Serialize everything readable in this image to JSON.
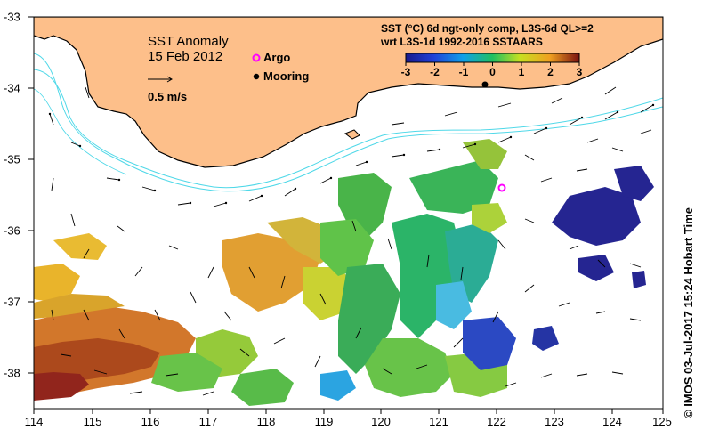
{
  "map": {
    "title": "SST Anomaly",
    "date": "15 Feb 2012",
    "legend": {
      "argo_label": "Argo",
      "mooring_label": "Mooring",
      "argo_color": "#ff00ff",
      "mooring_color": "#000000"
    },
    "vector_scale_label": "0.5 m/s",
    "colorbar": {
      "title_line1": "SST (°C) 6d ngt-only comp, L3S-6d QL>=2",
      "title_line2": "wrt L3S-1d 1992-2016 SSTAARS",
      "ticks": [
        "-3",
        "-2",
        "-1",
        "0",
        "1",
        "2",
        "3"
      ],
      "colors": [
        "#1a1a8c",
        "#2040d8",
        "#10a0e8",
        "#20c060",
        "#c8e020",
        "#f0a020",
        "#b04010",
        "#7a1010"
      ]
    },
    "x_ticks": [
      "114",
      "115",
      "116",
      "117",
      "118",
      "119",
      "120",
      "121",
      "122",
      "123",
      "124",
      "125"
    ],
    "y_ticks": [
      "-33",
      "-34",
      "-35",
      "-36",
      "-37",
      "-38"
    ],
    "credit": "© IMOS 03-Jul-2017 15:24 Hobart Time",
    "land_color": "#fdbf8a",
    "contour_color": "#4fd8e8"
  }
}
